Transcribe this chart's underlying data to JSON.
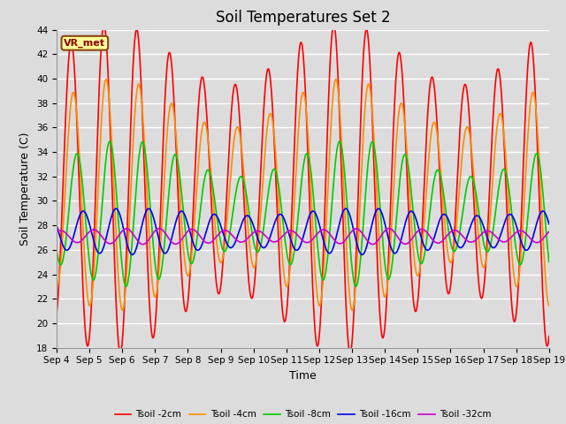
{
  "title": "Soil Temperatures Set 2",
  "xlabel": "Time",
  "ylabel": "Soil Temperature (C)",
  "ylim": [
    18,
    44
  ],
  "annotation": "VR_met",
  "x_tick_labels": [
    "Sep 4",
    "Sep 5",
    "Sep 6",
    "Sep 7",
    "Sep 8",
    "Sep 9",
    "Sep 10",
    "Sep 11",
    "Sep 12",
    "Sep 13",
    "Sep 14",
    "Sep 15",
    "Sep 16",
    "Sep 17",
    "Sep 18",
    "Sep 19"
  ],
  "series": [
    {
      "label": "Tsoil -2cm",
      "color": "#FF0000",
      "mean": 31.0,
      "amplitude": 11.0,
      "phase": 1.2,
      "trend": 0.0,
      "amp_mod_amp": 2.5,
      "amp_mod_period": 7.0,
      "amp_mod_phase": 0.0
    },
    {
      "label": "Tsoil -4cm",
      "color": "#FF8C00",
      "mean": 30.5,
      "amplitude": 7.5,
      "phase": 1.6,
      "trend": 0.0,
      "amp_mod_amp": 2.0,
      "amp_mod_period": 7.0,
      "amp_mod_phase": 0.0
    },
    {
      "label": "Tsoil -8cm",
      "color": "#00CC00",
      "mean": 29.0,
      "amplitude": 4.5,
      "phase": 2.3,
      "trend": 0.0,
      "amp_mod_amp": 1.5,
      "amp_mod_period": 7.0,
      "amp_mod_phase": 0.3
    },
    {
      "label": "Tsoil -16cm",
      "color": "#0000EE",
      "mean": 27.5,
      "amplitude": 1.6,
      "phase": 3.5,
      "trend": 0.0,
      "amp_mod_amp": 0.3,
      "amp_mod_period": 7.0,
      "amp_mod_phase": 0.5
    },
    {
      "label": "Tsoil -32cm",
      "color": "#CC00CC",
      "mean": 27.1,
      "amplitude": 0.55,
      "phase": 5.5,
      "trend": 0.0,
      "amp_mod_amp": 0.1,
      "amp_mod_period": 7.0,
      "amp_mod_phase": 1.0
    }
  ],
  "bg_color": "#DCDCDC",
  "grid_color": "#FFFFFF",
  "title_fontsize": 12,
  "label_fontsize": 9,
  "tick_fontsize": 7.5,
  "linewidth": 1.2
}
